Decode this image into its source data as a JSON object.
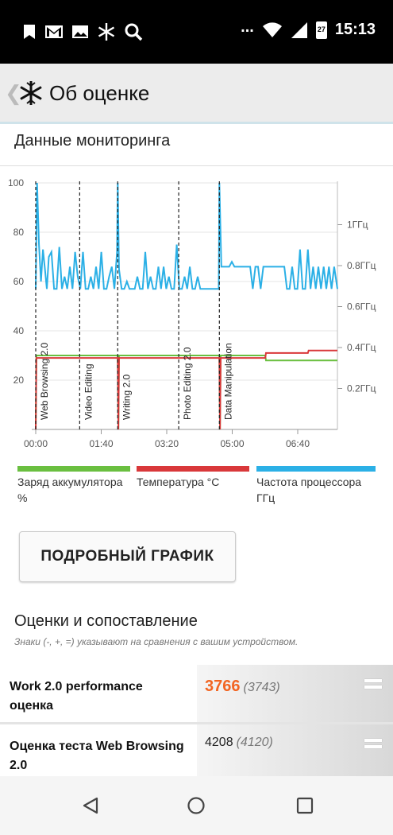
{
  "status_bar": {
    "time": "15:13",
    "battery_level": "27",
    "more": "...",
    "left_icons": [
      "bookmark-icon",
      "gmail-icon",
      "image-icon",
      "snowflake-icon",
      "search-icon"
    ]
  },
  "app_bar": {
    "title": "Об оценке"
  },
  "monitoring": {
    "title": "Данные мониторинга"
  },
  "chart_data": {
    "type": "line",
    "x_ticks": [
      "00:00",
      "01:40",
      "03:20",
      "05:00",
      "06:40"
    ],
    "y_left_ticks": [
      "20",
      "40",
      "60",
      "80",
      "100"
    ],
    "y_right_ticks": [
      "0.2ГГц",
      "0.4ГГц",
      "0.6ГГц",
      "0.8ГГц",
      "1ГГц"
    ],
    "ylim_left": [
      0,
      100
    ],
    "x_range_seconds": [
      0,
      460
    ],
    "markers": [
      {
        "label": "Web Browsing 2.0",
        "x": 0
      },
      {
        "label": "Video Editing",
        "x": 67
      },
      {
        "label": "Writing 2.0",
        "x": 125
      },
      {
        "label": "Photo Editing 2.0",
        "x": 218
      },
      {
        "label": "Data Manipulation",
        "x": 280
      }
    ],
    "series": [
      {
        "name": "Заряд аккумулятора %",
        "color": "#6abf40",
        "x": [
          0,
          1,
          2,
          67,
          125,
          126,
          127,
          280,
          281,
          282,
          350,
          351,
          460
        ],
        "values": [
          0,
          30,
          30,
          30,
          30,
          0,
          30,
          30,
          0,
          30,
          30,
          28,
          28
        ]
      },
      {
        "name": "Температура °С",
        "color": "#d9383a",
        "x": [
          0,
          1,
          2,
          125,
          126,
          127,
          280,
          281,
          282,
          350,
          351,
          415,
          416,
          460
        ],
        "values": [
          0,
          29,
          29,
          29,
          0,
          29,
          29,
          0,
          29,
          29,
          31,
          31,
          32,
          32
        ],
        "_secondary": false
      },
      {
        "name": "Частота процессора ГГц",
        "color": "#2bb0e6",
        "x": [
          0,
          2,
          5,
          8,
          11,
          14,
          17,
          20,
          24,
          28,
          32,
          36,
          40,
          44,
          48,
          52,
          56,
          60,
          64,
          68,
          72,
          76,
          80,
          84,
          88,
          92,
          96,
          100,
          104,
          108,
          112,
          116,
          120,
          124,
          125,
          127,
          131,
          135,
          139,
          143,
          147,
          151,
          155,
          159,
          163,
          167,
          171,
          175,
          179,
          183,
          187,
          191,
          195,
          199,
          203,
          207,
          211,
          215,
          219,
          223,
          227,
          231,
          235,
          239,
          243,
          247,
          251,
          255,
          259,
          263,
          267,
          271,
          275,
          279,
          280,
          283,
          287,
          291,
          295,
          299,
          303,
          307,
          311,
          315,
          319,
          323,
          327,
          331,
          335,
          339,
          343,
          347,
          351,
          355,
          359,
          363,
          367,
          371,
          375,
          379,
          383,
          387,
          391,
          395,
          399,
          403,
          407,
          411,
          415,
          419,
          423,
          427,
          431,
          435,
          439,
          443,
          447,
          451,
          455,
          460
        ],
        "values": [
          57,
          100,
          75,
          60,
          73,
          65,
          57,
          70,
          72,
          57,
          57,
          74,
          57,
          62,
          57,
          66,
          57,
          72,
          62,
          57,
          72,
          57,
          57,
          62,
          57,
          66,
          57,
          72,
          57,
          57,
          62,
          66,
          57,
          72,
          100,
          65,
          57,
          57,
          60,
          57,
          57,
          57,
          62,
          57,
          57,
          72,
          57,
          62,
          57,
          57,
          66,
          57,
          66,
          57,
          62,
          57,
          57,
          75,
          57,
          57,
          62,
          57,
          66,
          57,
          57,
          62,
          57,
          57,
          57,
          57,
          57,
          57,
          57,
          57,
          100,
          66,
          66,
          66,
          66,
          68,
          66,
          66,
          66,
          66,
          66,
          66,
          66,
          57,
          66,
          66,
          57,
          66,
          66,
          66,
          66,
          66,
          66,
          66,
          66,
          66,
          57,
          57,
          66,
          57,
          57,
          73,
          57,
          57,
          73,
          57,
          66,
          57,
          66,
          57,
          66,
          57,
          66,
          57,
          66,
          57
        ]
      }
    ]
  },
  "legend": {
    "battery": "Заряд аккумулятора %",
    "temperature": "Температура °С",
    "cpu": "Частота процессора ГГц"
  },
  "detail_button": {
    "label": "ПОДРОБНЫЙ ГРАФИК"
  },
  "scores": {
    "title": "Оценки и сопоставление",
    "hint": "Знаки (-, +, =) указывают на сравнения с вашим устройством.",
    "rows": [
      {
        "label": "Work 2.0 performance оценка",
        "value": "3766",
        "compare": "(3743)",
        "sign": "="
      },
      {
        "label": "Оценка теста Web Browsing 2.0",
        "value": "4208",
        "compare": "(4120)",
        "sign": "="
      }
    ]
  }
}
